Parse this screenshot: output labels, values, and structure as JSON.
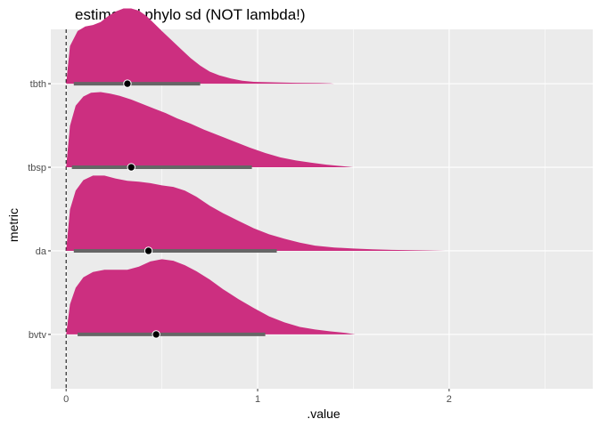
{
  "chart_data": {
    "type": "area",
    "subtype": "halfeye",
    "title": "estimated phylo sd (NOT lambda!)",
    "xlabel": ".value",
    "ylabel": "metric",
    "xlim": [
      -0.08,
      2.75
    ],
    "x_ticks": [
      0,
      1,
      2
    ],
    "x_tick_labels": [
      "0",
      "1",
      "2"
    ],
    "reference_line": {
      "x": 0,
      "style": "dashed"
    },
    "grid": true,
    "legend": "none",
    "colors": {
      "fill": "#cc2f80",
      "interval": "#666666",
      "point": "#000000",
      "panel": "#ebebeb",
      "gridline": "#ffffff"
    },
    "categories": [
      "bvtv",
      "da",
      "tbsp",
      "tbth"
    ],
    "series": [
      {
        "metric": "tbth",
        "point": 0.32,
        "interval": [
          0.04,
          0.7
        ],
        "density": [
          [
            0.0,
            0.0
          ],
          [
            0.02,
            0.5
          ],
          [
            0.06,
            0.7
          ],
          [
            0.1,
            0.76
          ],
          [
            0.14,
            0.78
          ],
          [
            0.18,
            0.82
          ],
          [
            0.22,
            0.9
          ],
          [
            0.26,
            0.96
          ],
          [
            0.3,
            1.0
          ],
          [
            0.34,
            1.0
          ],
          [
            0.38,
            0.97
          ],
          [
            0.42,
            0.9
          ],
          [
            0.46,
            0.8
          ],
          [
            0.5,
            0.7
          ],
          [
            0.55,
            0.58
          ],
          [
            0.6,
            0.46
          ],
          [
            0.65,
            0.34
          ],
          [
            0.7,
            0.24
          ],
          [
            0.75,
            0.16
          ],
          [
            0.8,
            0.11
          ],
          [
            0.86,
            0.07
          ],
          [
            0.92,
            0.04
          ],
          [
            0.98,
            0.025
          ],
          [
            1.05,
            0.02
          ],
          [
            1.12,
            0.015
          ],
          [
            1.2,
            0.012
          ],
          [
            1.26,
            0.01
          ],
          [
            1.32,
            0.008
          ],
          [
            1.38,
            0.004
          ],
          [
            1.4,
            0.0
          ]
        ]
      },
      {
        "metric": "tbsp",
        "point": 0.34,
        "interval": [
          0.03,
          0.97
        ],
        "density": [
          [
            0.0,
            0.0
          ],
          [
            0.02,
            0.55
          ],
          [
            0.05,
            0.82
          ],
          [
            0.09,
            0.94
          ],
          [
            0.13,
            0.99
          ],
          [
            0.18,
            1.0
          ],
          [
            0.23,
            0.98
          ],
          [
            0.28,
            0.95
          ],
          [
            0.34,
            0.9
          ],
          [
            0.4,
            0.84
          ],
          [
            0.46,
            0.78
          ],
          [
            0.52,
            0.72
          ],
          [
            0.58,
            0.65
          ],
          [
            0.65,
            0.58
          ],
          [
            0.72,
            0.5
          ],
          [
            0.8,
            0.42
          ],
          [
            0.88,
            0.34
          ],
          [
            0.96,
            0.26
          ],
          [
            1.04,
            0.19
          ],
          [
            1.12,
            0.13
          ],
          [
            1.2,
            0.09
          ],
          [
            1.28,
            0.06
          ],
          [
            1.36,
            0.035
          ],
          [
            1.44,
            0.015
          ],
          [
            1.5,
            0.0
          ]
        ]
      },
      {
        "metric": "da",
        "point": 0.43,
        "interval": [
          0.04,
          1.1
        ],
        "density": [
          [
            0.0,
            0.0
          ],
          [
            0.02,
            0.55
          ],
          [
            0.05,
            0.8
          ],
          [
            0.09,
            0.94
          ],
          [
            0.14,
            1.0
          ],
          [
            0.2,
            1.0
          ],
          [
            0.26,
            0.96
          ],
          [
            0.32,
            0.93
          ],
          [
            0.38,
            0.92
          ],
          [
            0.44,
            0.9
          ],
          [
            0.5,
            0.87
          ],
          [
            0.56,
            0.85
          ],
          [
            0.62,
            0.8
          ],
          [
            0.68,
            0.72
          ],
          [
            0.75,
            0.6
          ],
          [
            0.82,
            0.5
          ],
          [
            0.9,
            0.4
          ],
          [
            0.98,
            0.3
          ],
          [
            1.06,
            0.22
          ],
          [
            1.14,
            0.16
          ],
          [
            1.22,
            0.11
          ],
          [
            1.3,
            0.07
          ],
          [
            1.4,
            0.045
          ],
          [
            1.5,
            0.03
          ],
          [
            1.6,
            0.02
          ],
          [
            1.7,
            0.013
          ],
          [
            1.8,
            0.008
          ],
          [
            1.9,
            0.004
          ],
          [
            1.98,
            0.0
          ]
        ]
      },
      {
        "metric": "bvtv",
        "point": 0.47,
        "interval": [
          0.06,
          1.04
        ],
        "density": [
          [
            0.0,
            0.0
          ],
          [
            0.02,
            0.4
          ],
          [
            0.05,
            0.62
          ],
          [
            0.09,
            0.76
          ],
          [
            0.14,
            0.83
          ],
          [
            0.2,
            0.86
          ],
          [
            0.26,
            0.86
          ],
          [
            0.32,
            0.86
          ],
          [
            0.38,
            0.9
          ],
          [
            0.44,
            0.97
          ],
          [
            0.5,
            1.0
          ],
          [
            0.56,
            0.98
          ],
          [
            0.62,
            0.92
          ],
          [
            0.68,
            0.84
          ],
          [
            0.75,
            0.73
          ],
          [
            0.82,
            0.6
          ],
          [
            0.9,
            0.47
          ],
          [
            0.98,
            0.35
          ],
          [
            1.06,
            0.24
          ],
          [
            1.14,
            0.16
          ],
          [
            1.22,
            0.1
          ],
          [
            1.3,
            0.065
          ],
          [
            1.38,
            0.04
          ],
          [
            1.46,
            0.02
          ],
          [
            1.51,
            0.0
          ]
        ]
      }
    ]
  }
}
